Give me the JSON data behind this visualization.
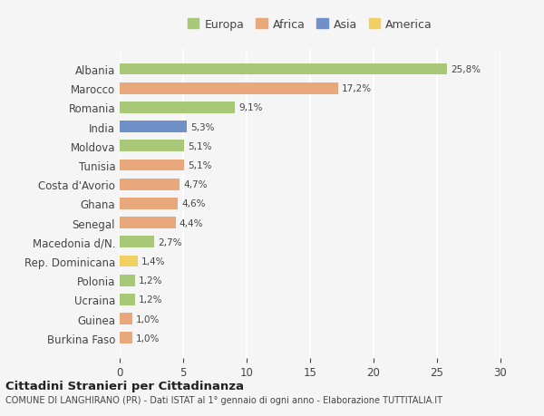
{
  "countries": [
    "Burkina Faso",
    "Guinea",
    "Ucraina",
    "Polonia",
    "Rep. Dominicana",
    "Macedonia d/N.",
    "Senegal",
    "Ghana",
    "Costa d'Avorio",
    "Tunisia",
    "Moldova",
    "India",
    "Romania",
    "Marocco",
    "Albania"
  ],
  "values": [
    1.0,
    1.0,
    1.2,
    1.2,
    1.4,
    2.7,
    4.4,
    4.6,
    4.7,
    5.1,
    5.1,
    5.3,
    9.1,
    17.2,
    25.8
  ],
  "labels": [
    "1,0%",
    "1,0%",
    "1,2%",
    "1,2%",
    "1,4%",
    "2,7%",
    "4,4%",
    "4,6%",
    "4,7%",
    "5,1%",
    "5,1%",
    "5,3%",
    "9,1%",
    "17,2%",
    "25,8%"
  ],
  "colors": [
    "#e8a87c",
    "#e8a87c",
    "#a8c878",
    "#a8c878",
    "#f0d060",
    "#a8c878",
    "#e8a87c",
    "#e8a87c",
    "#e8a87c",
    "#e8a87c",
    "#a8c878",
    "#7090c8",
    "#a8c878",
    "#e8a87c",
    "#a8c878"
  ],
  "legend": [
    {
      "label": "Europa",
      "color": "#a8c878"
    },
    {
      "label": "Africa",
      "color": "#e8a87c"
    },
    {
      "label": "Asia",
      "color": "#7090c8"
    },
    {
      "label": "America",
      "color": "#f0d060"
    }
  ],
  "xlim": [
    0,
    30
  ],
  "xticks": [
    0,
    5,
    10,
    15,
    20,
    25,
    30
  ],
  "title": "Cittadini Stranieri per Cittadinanza",
  "subtitle": "COMUNE DI LANGHIRANO (PR) - Dati ISTAT al 1° gennaio di ogni anno - Elaborazione TUTTITALIA.IT",
  "background_color": "#f5f5f5",
  "bar_height": 0.6
}
